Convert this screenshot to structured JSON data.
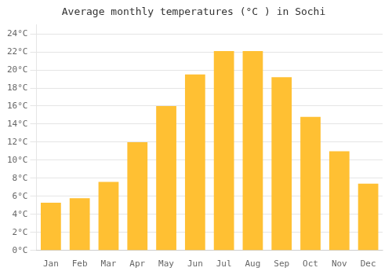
{
  "chart_data": {
    "type": "bar",
    "title": "Average monthly temperatures (°C ) in Sochi",
    "categories": [
      "Jan",
      "Feb",
      "Mar",
      "Apr",
      "May",
      "Jun",
      "Jul",
      "Aug",
      "Sep",
      "Oct",
      "Nov",
      "Dec"
    ],
    "values": [
      5.3,
      5.8,
      7.6,
      12.0,
      16.0,
      19.5,
      22.1,
      22.1,
      19.2,
      14.8,
      11.0,
      7.4
    ],
    "color": "#FFC033",
    "ylim": [
      0,
      25
    ],
    "yticks": [
      {
        "value": 0,
        "label": "0°C"
      },
      {
        "value": 2,
        "label": "2°C"
      },
      {
        "value": 4,
        "label": "4°C"
      },
      {
        "value": 6,
        "label": "6°C"
      },
      {
        "value": 8,
        "label": "8°C"
      },
      {
        "value": 10,
        "label": "10°C"
      },
      {
        "value": 12,
        "label": "12°C"
      },
      {
        "value": 14,
        "label": "14°C"
      },
      {
        "value": 16,
        "label": "16°C"
      },
      {
        "value": 18,
        "label": "18°C"
      },
      {
        "value": 20,
        "label": "20°C"
      },
      {
        "value": 22,
        "label": "22°C"
      },
      {
        "value": 24,
        "label": "24°C"
      }
    ],
    "grid": true
  }
}
